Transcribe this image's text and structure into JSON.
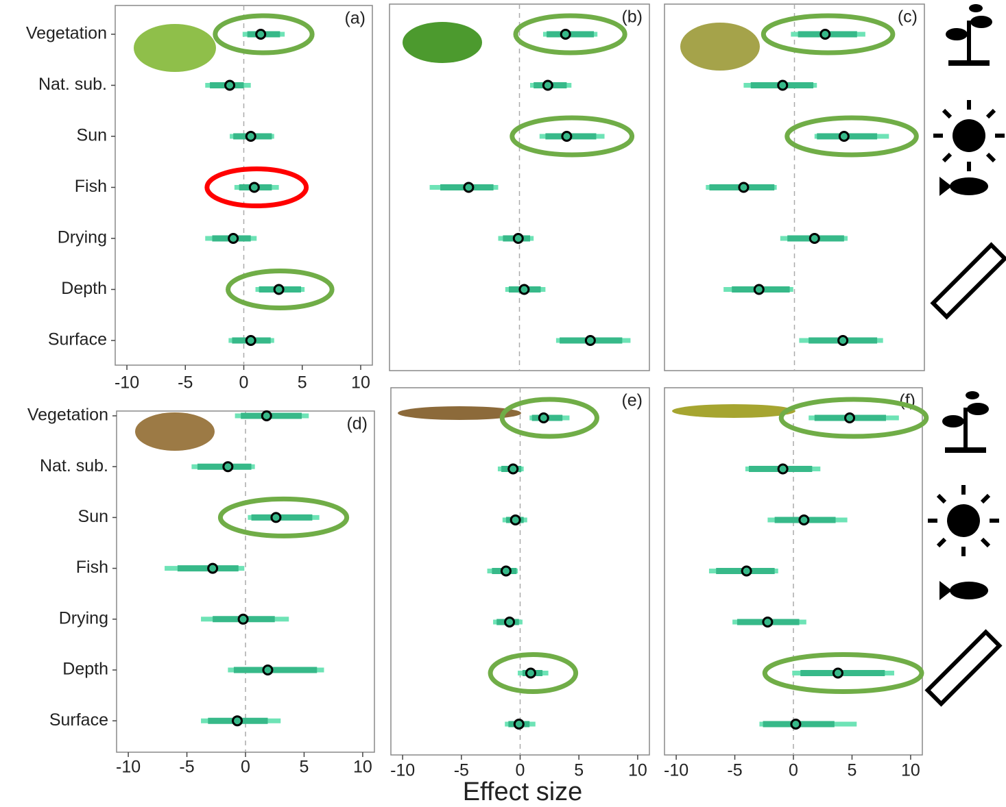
{
  "figure": {
    "xlabel": "Effect size"
  },
  "chart_data": [
    {
      "type": "forest",
      "label": "(a)",
      "categories": [
        "Vegetation",
        "Nat. sub.",
        "Sun",
        "Fish",
        "Drying",
        "Depth",
        "Surface"
      ],
      "values": [
        1.45,
        -1.2,
        0.6,
        0.9,
        -0.9,
        3.0,
        0.6
      ],
      "inner_low": [
        0.3,
        -2.9,
        -0.9,
        -0.4,
        -2.7,
        1.3,
        -1.0
      ],
      "inner_high": [
        3.1,
        0,
        2.4,
        2.4,
        0.6,
        4.9,
        2.3
      ],
      "outer_low": [
        -0.1,
        -3.3,
        -1.2,
        -0.8,
        -3.3,
        1.0,
        -1.3
      ],
      "outer_high": [
        3.5,
        0.6,
        2.6,
        3.0,
        1.1,
        5.2,
        2.6
      ],
      "highlights": [
        "#70ad47",
        null,
        null,
        "#ff0000",
        null,
        "#70ad47",
        null
      ],
      "xlim": [
        -11,
        11
      ],
      "xticks": [
        -10,
        -5,
        0,
        5,
        10
      ]
    },
    {
      "type": "forest",
      "label": "(b)",
      "values": [
        3.9,
        2.4,
        4.0,
        -4.3,
        -0.1,
        0.4,
        6.0
      ],
      "inner_low": [
        2.3,
        1.2,
        2.2,
        -6.7,
        -1.4,
        -0.9,
        3.4
      ],
      "inner_high": [
        6.3,
        4.0,
        6.5,
        -2.2,
        0.9,
        1.8,
        8.7
      ],
      "outer_low": [
        2.0,
        0.9,
        1.7,
        -7.6,
        -1.8,
        -1.2,
        3.1
      ],
      "outer_high": [
        6.6,
        4.4,
        7.2,
        -1.8,
        1.2,
        2.2,
        9.4
      ],
      "highlights": [
        "#70ad47",
        null,
        "#70ad47",
        null,
        null,
        null,
        null
      ],
      "xlim": [
        -11,
        11
      ]
    },
    {
      "type": "forest",
      "label": "(c)",
      "values": [
        2.6,
        -1.0,
        4.2,
        -4.3,
        1.7,
        -3.0,
        4.1
      ],
      "inner_low": [
        0.3,
        -3.7,
        1.9,
        -7.2,
        -0.6,
        -5.3,
        1.2
      ],
      "inner_high": [
        5.3,
        1.6,
        7.0,
        -1.7,
        4.2,
        -0.4,
        7.0
      ],
      "outer_low": [
        -0.3,
        -4.3,
        1.7,
        -7.5,
        -1.2,
        -6.0,
        0.4
      ],
      "outer_high": [
        6.0,
        1.9,
        8.0,
        -1.5,
        4.5,
        -0.1,
        7.5
      ],
      "highlights": [
        "#70ad47",
        null,
        "#70ad47",
        null,
        null,
        null,
        null
      ],
      "xlim": [
        -11,
        11
      ]
    },
    {
      "type": "forest",
      "label": "(d)",
      "categories": [
        "Vegetation",
        "Nat. sub.",
        "Sun",
        "Fish",
        "Drying",
        "Depth",
        "Surface"
      ],
      "values": [
        1.8,
        -1.5,
        2.6,
        -2.8,
        -0.2,
        1.9,
        -0.7
      ],
      "inner_low": [
        -0.4,
        -4.1,
        0.5,
        -5.8,
        -2.8,
        -1.0,
        -3.2
      ],
      "inner_high": [
        4.8,
        0.5,
        5.7,
        -0.6,
        2.5,
        6.1,
        1.9
      ],
      "outer_low": [
        -0.9,
        -4.6,
        0.2,
        -6.9,
        -3.8,
        -1.5,
        -3.8
      ],
      "outer_high": [
        5.4,
        0.8,
        6.3,
        -0.1,
        3.7,
        6.7,
        3.0
      ],
      "highlights": [
        null,
        null,
        "#70ad47",
        null,
        null,
        null,
        null
      ],
      "xlim": [
        -11,
        11
      ],
      "xticks": [
        -10,
        -5,
        0,
        5,
        10
      ]
    },
    {
      "type": "forest",
      "label": "(e)",
      "values": [
        2.0,
        -0.6,
        -0.4,
        -1.2,
        -0.9,
        0.9,
        -0.1
      ],
      "inner_low": [
        1.0,
        -1.6,
        -1.2,
        -2.4,
        -2.0,
        0.2,
        -1.0
      ],
      "inner_high": [
        3.6,
        0.1,
        0.3,
        -0.3,
        -0.1,
        1.9,
        0.8
      ],
      "outer_low": [
        0.8,
        -1.9,
        -1.5,
        -2.8,
        -2.3,
        -0.2,
        -1.3
      ],
      "outer_high": [
        4.2,
        0.3,
        0.6,
        -0.2,
        0.2,
        2.4,
        1.3
      ],
      "highlights": [
        "#70ad47",
        null,
        null,
        null,
        null,
        "#70ad47",
        null
      ],
      "xlim": [
        -11,
        11
      ],
      "xticks": [
        -10,
        -5,
        0,
        5,
        10
      ]
    },
    {
      "type": "forest",
      "label": "(f)",
      "values": [
        4.8,
        -0.9,
        0.9,
        -4.0,
        -2.2,
        3.8,
        0.2
      ],
      "inner_low": [
        1.8,
        -3.8,
        -1.6,
        -6.6,
        -4.8,
        0.6,
        -2.6
      ],
      "inner_high": [
        7.9,
        1.6,
        3.6,
        -1.6,
        0.5,
        7.8,
        3.5
      ],
      "outer_low": [
        1.3,
        -4.1,
        -2.2,
        -7.2,
        -5.2,
        -0.1,
        -2.9
      ],
      "outer_high": [
        9.0,
        2.3,
        4.6,
        -1.3,
        1.1,
        8.6,
        5.4
      ],
      "highlights": [
        "#70ad47",
        null,
        null,
        null,
        null,
        "#70ad47",
        null
      ],
      "xlim": [
        -11,
        11
      ],
      "xticks": [
        -10,
        -5,
        0,
        5,
        10
      ]
    }
  ]
}
